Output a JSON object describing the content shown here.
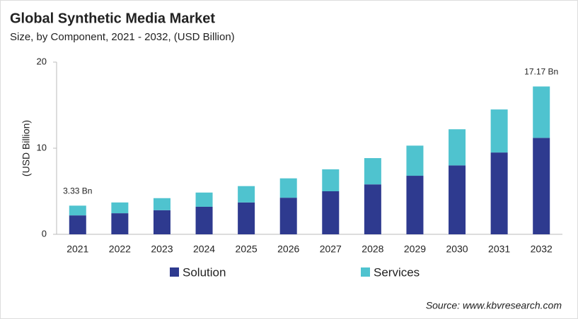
{
  "chart_data": {
    "type": "stacked-bar",
    "title": "Global Synthetic Media Market",
    "subtitle": "Size, by Component, 2021 - 2032, (USD Billion)",
    "y_label": "(USD Billion)",
    "categories": [
      "2021",
      "2022",
      "2023",
      "2024",
      "2025",
      "2026",
      "2027",
      "2028",
      "2029",
      "2030",
      "2031",
      "2032"
    ],
    "series": [
      {
        "name": "Solution",
        "color": "#2e3a8f",
        "values": [
          2.2,
          2.45,
          2.8,
          3.2,
          3.7,
          4.25,
          5.0,
          5.8,
          6.8,
          8.0,
          9.5,
          11.2
        ]
      },
      {
        "name": "Services",
        "color": "#4fc3cf",
        "values": [
          1.13,
          1.25,
          1.4,
          1.65,
          1.9,
          2.25,
          2.55,
          3.05,
          3.5,
          4.2,
          5.0,
          5.97
        ]
      }
    ],
    "annotations": [
      {
        "category": "2021",
        "value": 3.33,
        "text": "3.33 Bn"
      },
      {
        "category": "2032",
        "value": 17.17,
        "text": "17.17 Bn"
      }
    ],
    "ylim": [
      0,
      20
    ],
    "yticks": [
      0,
      10,
      20
    ],
    "grid": false,
    "source": "Source: www.kbvresearch.com"
  }
}
